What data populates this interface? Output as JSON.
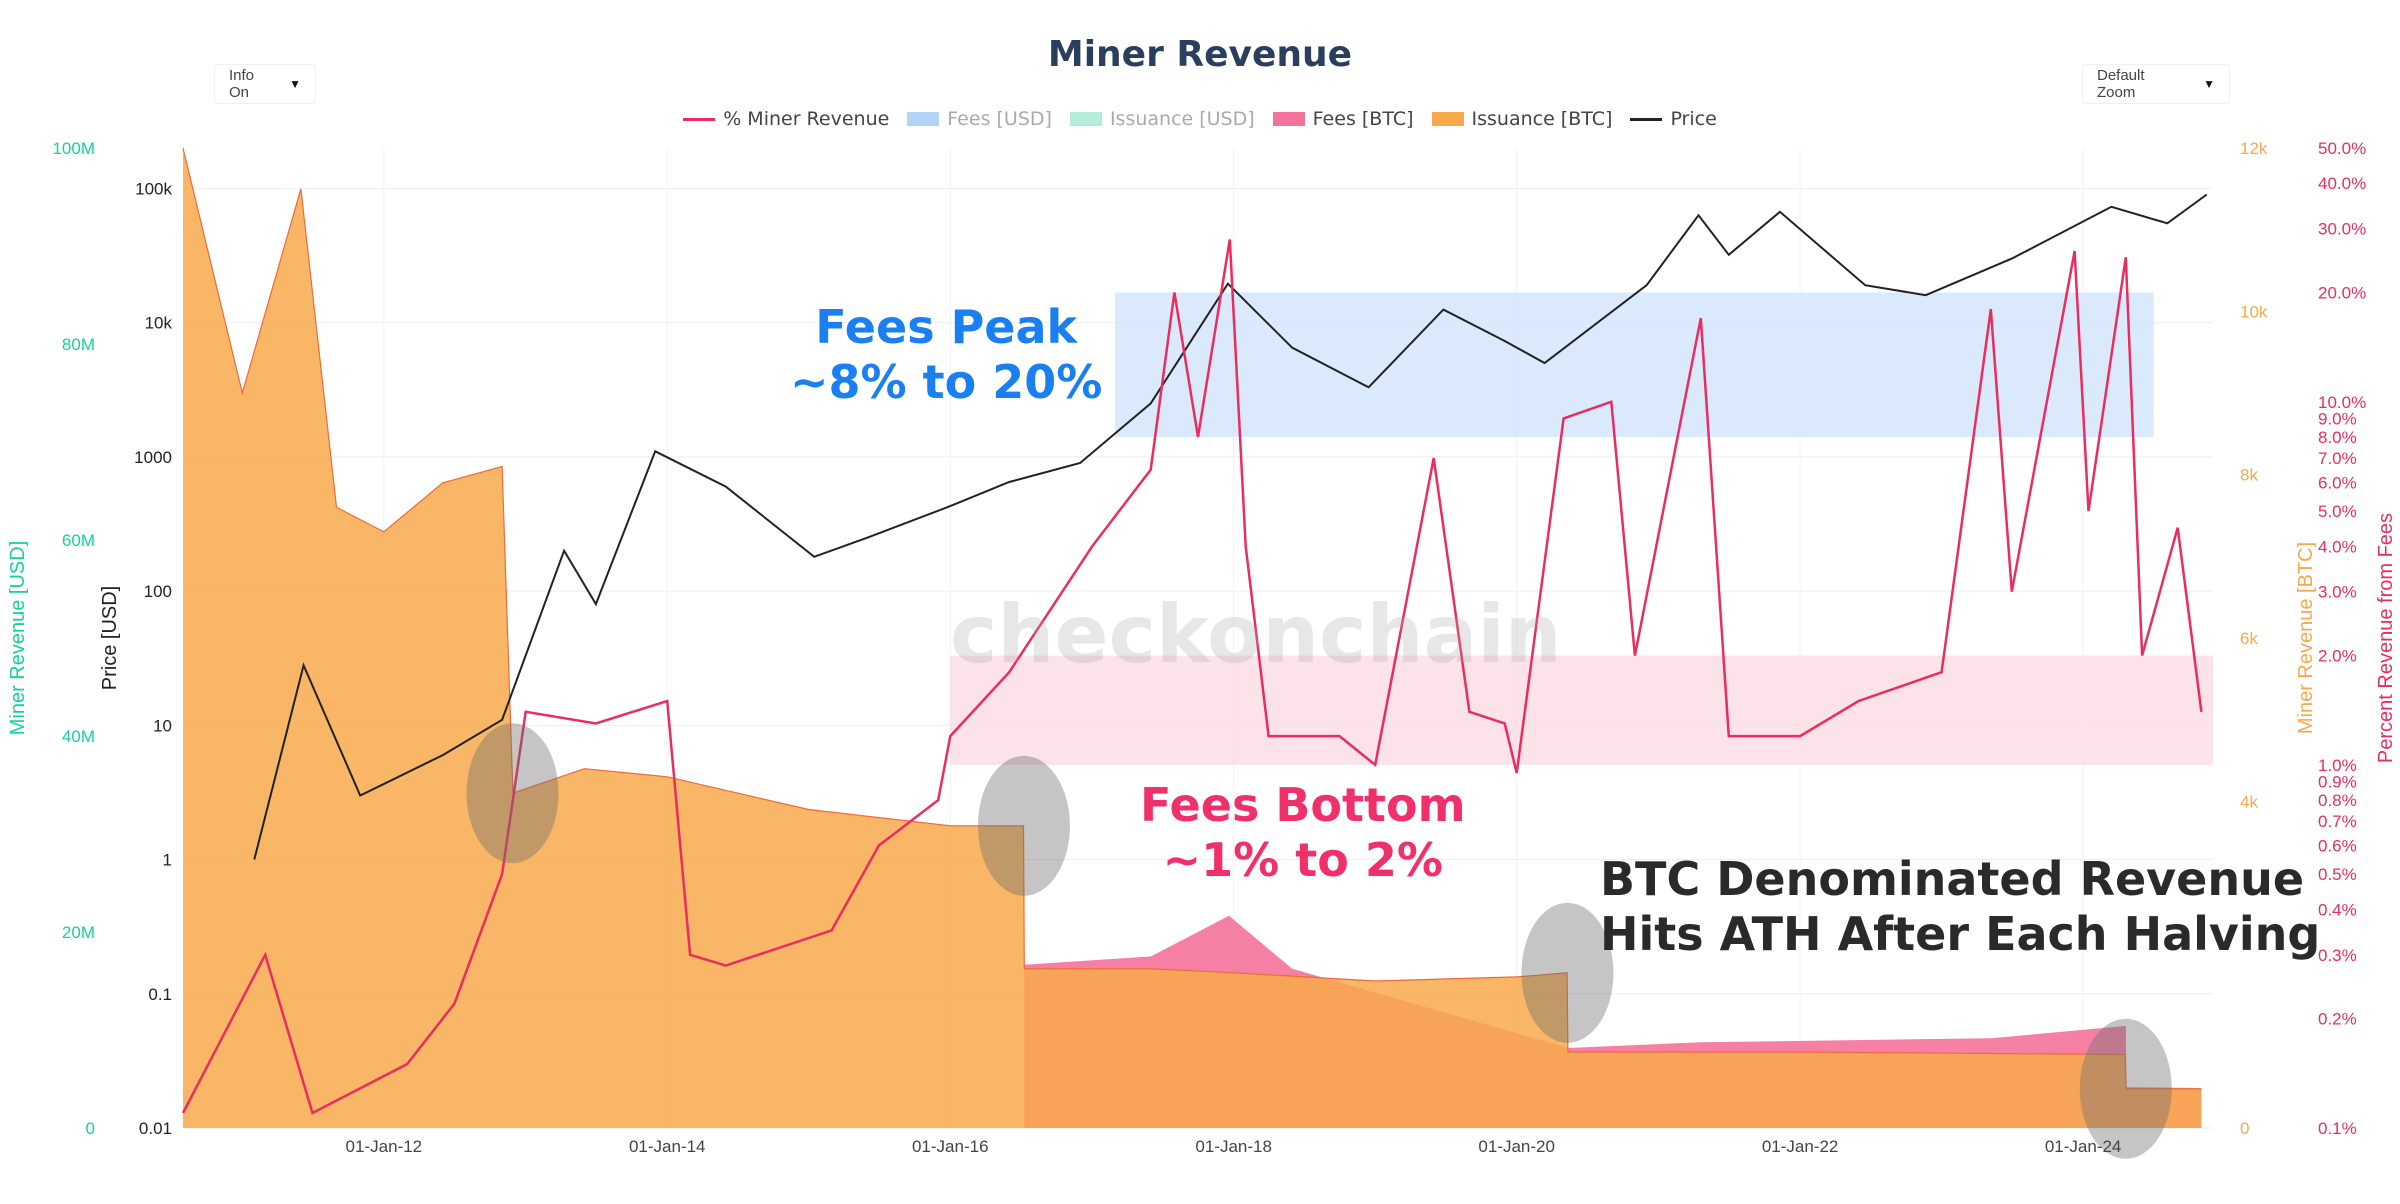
{
  "header": {
    "title": "Miner Revenue",
    "info_select": "Info On",
    "zoom_select": "Default Zoom",
    "watermark": "checkonchain"
  },
  "legend": [
    {
      "name": "% Miner Revenue",
      "type": "line",
      "color": "#ea2d5e",
      "active": true
    },
    {
      "name": "Fees [USD]",
      "type": "box",
      "color": "#b3d4f7",
      "active": false
    },
    {
      "name": "Issuance [USD]",
      "type": "box",
      "color": "#b5ecd8",
      "active": false
    },
    {
      "name": "Fees [BTC]",
      "type": "box",
      "color": "#f5729a",
      "active": true
    },
    {
      "name": "Issuance [BTC]",
      "type": "box",
      "color": "#f7a94b",
      "active": true
    },
    {
      "name": "Price",
      "type": "line",
      "color": "#222222",
      "active": true
    }
  ],
  "annotations": {
    "fees_peak": [
      "Fees Peak",
      "~8% to 20%"
    ],
    "fees_bottom": [
      "Fees Bottom",
      "~1% to 2%"
    ],
    "btc_revenue": [
      "BTC Denominated Revenue",
      "Hits ATH After Each Halving"
    ]
  },
  "chart_data": {
    "type": "line",
    "title": "Miner Revenue",
    "x_axis": {
      "type": "date",
      "range": [
        "2010-08-01",
        "2024-12-01"
      ],
      "ticks": [
        "01-Jan-12",
        "01-Jan-14",
        "01-Jan-16",
        "01-Jan-18",
        "01-Jan-20",
        "01-Jan-22",
        "01-Jan-24"
      ],
      "tick_dates": [
        "2012-01-01",
        "2014-01-01",
        "2016-01-01",
        "2018-01-01",
        "2020-01-01",
        "2022-01-01",
        "2024-01-01"
      ]
    },
    "axes": {
      "usd_revenue": {
        "label": "Miner Revenue [USD]",
        "color": "#16d19a",
        "range": [
          0,
          100000000
        ],
        "ticks": [
          "0",
          "20M",
          "40M",
          "60M",
          "80M",
          "100M"
        ]
      },
      "price": {
        "label": "Price [USD]",
        "color": "#222222",
        "scale": "log",
        "range": [
          0.01,
          200000
        ],
        "ticks": [
          "0.01",
          "0.1",
          "1",
          "10",
          "100",
          "1000",
          "10k",
          "100k"
        ]
      },
      "btc_revenue": {
        "label": "Miner Revenue [BTC]",
        "color": "#f7a94b",
        "range": [
          0,
          12000
        ],
        "ticks": [
          "0",
          "4k",
          "6k",
          "8k",
          "10k",
          "12k"
        ]
      },
      "fee_pct": {
        "label": "Percent Revenue from Fees",
        "color": "#ea2d5e",
        "scale": "log",
        "range": [
          0.1,
          50
        ],
        "ticks": [
          "0.1%",
          "0.2%",
          "0.3%",
          "0.4%",
          "0.5%",
          "0.6%",
          "0.7%",
          "0.8%",
          "0.9%",
          "1.0%",
          "2.0%",
          "3.0%",
          "4.0%",
          "5.0%",
          "6.0%",
          "7.0%",
          "8.0%",
          "9.0%",
          "10.0%",
          "20.0%",
          "30.0%",
          "40.0%",
          "50.0%"
        ]
      }
    },
    "series": [
      {
        "name": "Issuance [BTC]",
        "axis": "btc_revenue",
        "color": "#f7a94b",
        "points": [
          [
            "2010-08-01",
            12000
          ],
          [
            "2011-01-01",
            9000
          ],
          [
            "2011-06-01",
            11500
          ],
          [
            "2011-09-01",
            7600
          ],
          [
            "2012-01-01",
            7300
          ],
          [
            "2012-06-01",
            7900
          ],
          [
            "2012-11-01",
            8100
          ],
          [
            "2012-11-29",
            4100
          ],
          [
            "2013-06-01",
            4400
          ],
          [
            "2014-01-01",
            4300
          ],
          [
            "2015-01-01",
            3900
          ],
          [
            "2016-01-01",
            3700
          ],
          [
            "2016-07-08",
            3700
          ],
          [
            "2016-07-10",
            1950
          ],
          [
            "2017-06-01",
            1950
          ],
          [
            "2018-01-01",
            1900
          ],
          [
            "2019-01-01",
            1800
          ],
          [
            "2020-01-01",
            1850
          ],
          [
            "2020-05-10",
            1900
          ],
          [
            "2020-05-12",
            930
          ],
          [
            "2022-01-01",
            930
          ],
          [
            "2024-04-18",
            900
          ],
          [
            "2024-04-21",
            480
          ],
          [
            "2024-11-01",
            480
          ]
        ]
      },
      {
        "name": "Fees [BTC]",
        "axis": "btc_revenue",
        "color": "#f5729a",
        "points": [
          [
            "2016-07-10",
            2000
          ],
          [
            "2017-06-01",
            2100
          ],
          [
            "2017-12-20",
            2600
          ],
          [
            "2018-06-01",
            1950
          ],
          [
            "2020-05-12",
            980
          ],
          [
            "2021-04-20",
            1050
          ],
          [
            "2023-05-10",
            1100
          ],
          [
            "2024-04-20",
            1250
          ],
          [
            "2024-04-22",
            500
          ],
          [
            "2024-11-01",
            490
          ]
        ]
      },
      {
        "name": "% Miner Revenue",
        "axis": "fee_pct",
        "color": "#ea2d5e",
        "points": [
          [
            "2010-08-01",
            0.11
          ],
          [
            "2011-03-01",
            0.3
          ],
          [
            "2011-07-01",
            0.11
          ],
          [
            "2012-03-01",
            0.15
          ],
          [
            "2012-07-01",
            0.22
          ],
          [
            "2012-11-01",
            0.5
          ],
          [
            "2013-01-01",
            1.4
          ],
          [
            "2013-07-01",
            1.3
          ],
          [
            "2014-01-01",
            1.5
          ],
          [
            "2014-03-01",
            0.3
          ],
          [
            "2014-06-01",
            0.28
          ],
          [
            "2015-03-01",
            0.35
          ],
          [
            "2015-07-01",
            0.6
          ],
          [
            "2015-12-01",
            0.8
          ],
          [
            "2016-01-01",
            1.2
          ],
          [
            "2016-06-01",
            1.8
          ],
          [
            "2017-01-01",
            4.0
          ],
          [
            "2017-06-01",
            6.5
          ],
          [
            "2017-08-01",
            20.0
          ],
          [
            "2017-10-01",
            8.0
          ],
          [
            "2017-12-22",
            28.0
          ],
          [
            "2018-02-01",
            4.0
          ],
          [
            "2018-04-01",
            1.2
          ],
          [
            "2018-10-01",
            1.2
          ],
          [
            "2019-01-01",
            1.0
          ],
          [
            "2019-06-01",
            7.0
          ],
          [
            "2019-09-01",
            1.4
          ],
          [
            "2019-12-01",
            1.3
          ],
          [
            "2020-01-01",
            0.95
          ],
          [
            "2020-05-01",
            9.0
          ],
          [
            "2020-09-01",
            10.0
          ],
          [
            "2020-11-01",
            2.0
          ],
          [
            "2021-04-20",
            17.0
          ],
          [
            "2021-07-01",
            1.2
          ],
          [
            "2022-01-01",
            1.2
          ],
          [
            "2022-06-01",
            1.5
          ],
          [
            "2023-01-01",
            1.8
          ],
          [
            "2023-05-08",
            18.0
          ],
          [
            "2023-07-01",
            3.0
          ],
          [
            "2023-12-10",
            26.0
          ],
          [
            "2024-01-15",
            5.0
          ],
          [
            "2024-04-20",
            25.0
          ],
          [
            "2024-06-01",
            2.0
          ],
          [
            "2024-09-01",
            4.5
          ],
          [
            "2024-11-01",
            1.4
          ]
        ]
      },
      {
        "name": "Price",
        "axis": "price",
        "color": "#222222",
        "points": [
          [
            "2011-02-01",
            1.0
          ],
          [
            "2011-06-08",
            28.0
          ],
          [
            "2011-11-01",
            3.0
          ],
          [
            "2012-06-01",
            6.0
          ],
          [
            "2012-11-01",
            11.0
          ],
          [
            "2013-04-10",
            200.0
          ],
          [
            "2013-07-01",
            80.0
          ],
          [
            "2013-12-01",
            1100.0
          ],
          [
            "2014-06-01",
            600.0
          ],
          [
            "2015-01-15",
            180.0
          ],
          [
            "2015-06-01",
            250.0
          ],
          [
            "2016-01-01",
            430.0
          ],
          [
            "2016-06-01",
            650.0
          ],
          [
            "2016-12-01",
            900.0
          ],
          [
            "2017-06-01",
            2500.0
          ],
          [
            "2017-12-17",
            19500.0
          ],
          [
            "2018-06-01",
            6500.0
          ],
          [
            "2018-12-15",
            3300.0
          ],
          [
            "2019-06-26",
            12500.0
          ],
          [
            "2019-12-01",
            7300.0
          ],
          [
            "2020-03-13",
            5000.0
          ],
          [
            "2020-12-01",
            19000.0
          ],
          [
            "2021-04-14",
            63000.0
          ],
          [
            "2021-07-01",
            32000.0
          ],
          [
            "2021-11-10",
            67000.0
          ],
          [
            "2022-06-18",
            19000.0
          ],
          [
            "2022-11-21",
            16000.0
          ],
          [
            "2023-07-01",
            30000.0
          ],
          [
            "2024-03-14",
            73000.0
          ],
          [
            "2024-08-05",
            55000.0
          ],
          [
            "2024-11-15",
            90000.0
          ]
        ]
      }
    ],
    "highlight_bands": [
      {
        "label": "Fees Peak",
        "axis": "fee_pct",
        "x_range": [
          "2017-03-01",
          "2024-07-01"
        ],
        "y_range": [
          8,
          20
        ],
        "color": "#d4e6fb"
      },
      {
        "label": "Fees Bottom",
        "axis": "fee_pct",
        "x_range": [
          "2016-01-01",
          "2024-12-01"
        ],
        "y_range": [
          1,
          2
        ],
        "color": "#fbdde5"
      }
    ],
    "halving_markers": [
      "2012-11-28",
      "2016-07-09",
      "2020-05-11",
      "2024-04-20"
    ],
    "grid": true
  }
}
